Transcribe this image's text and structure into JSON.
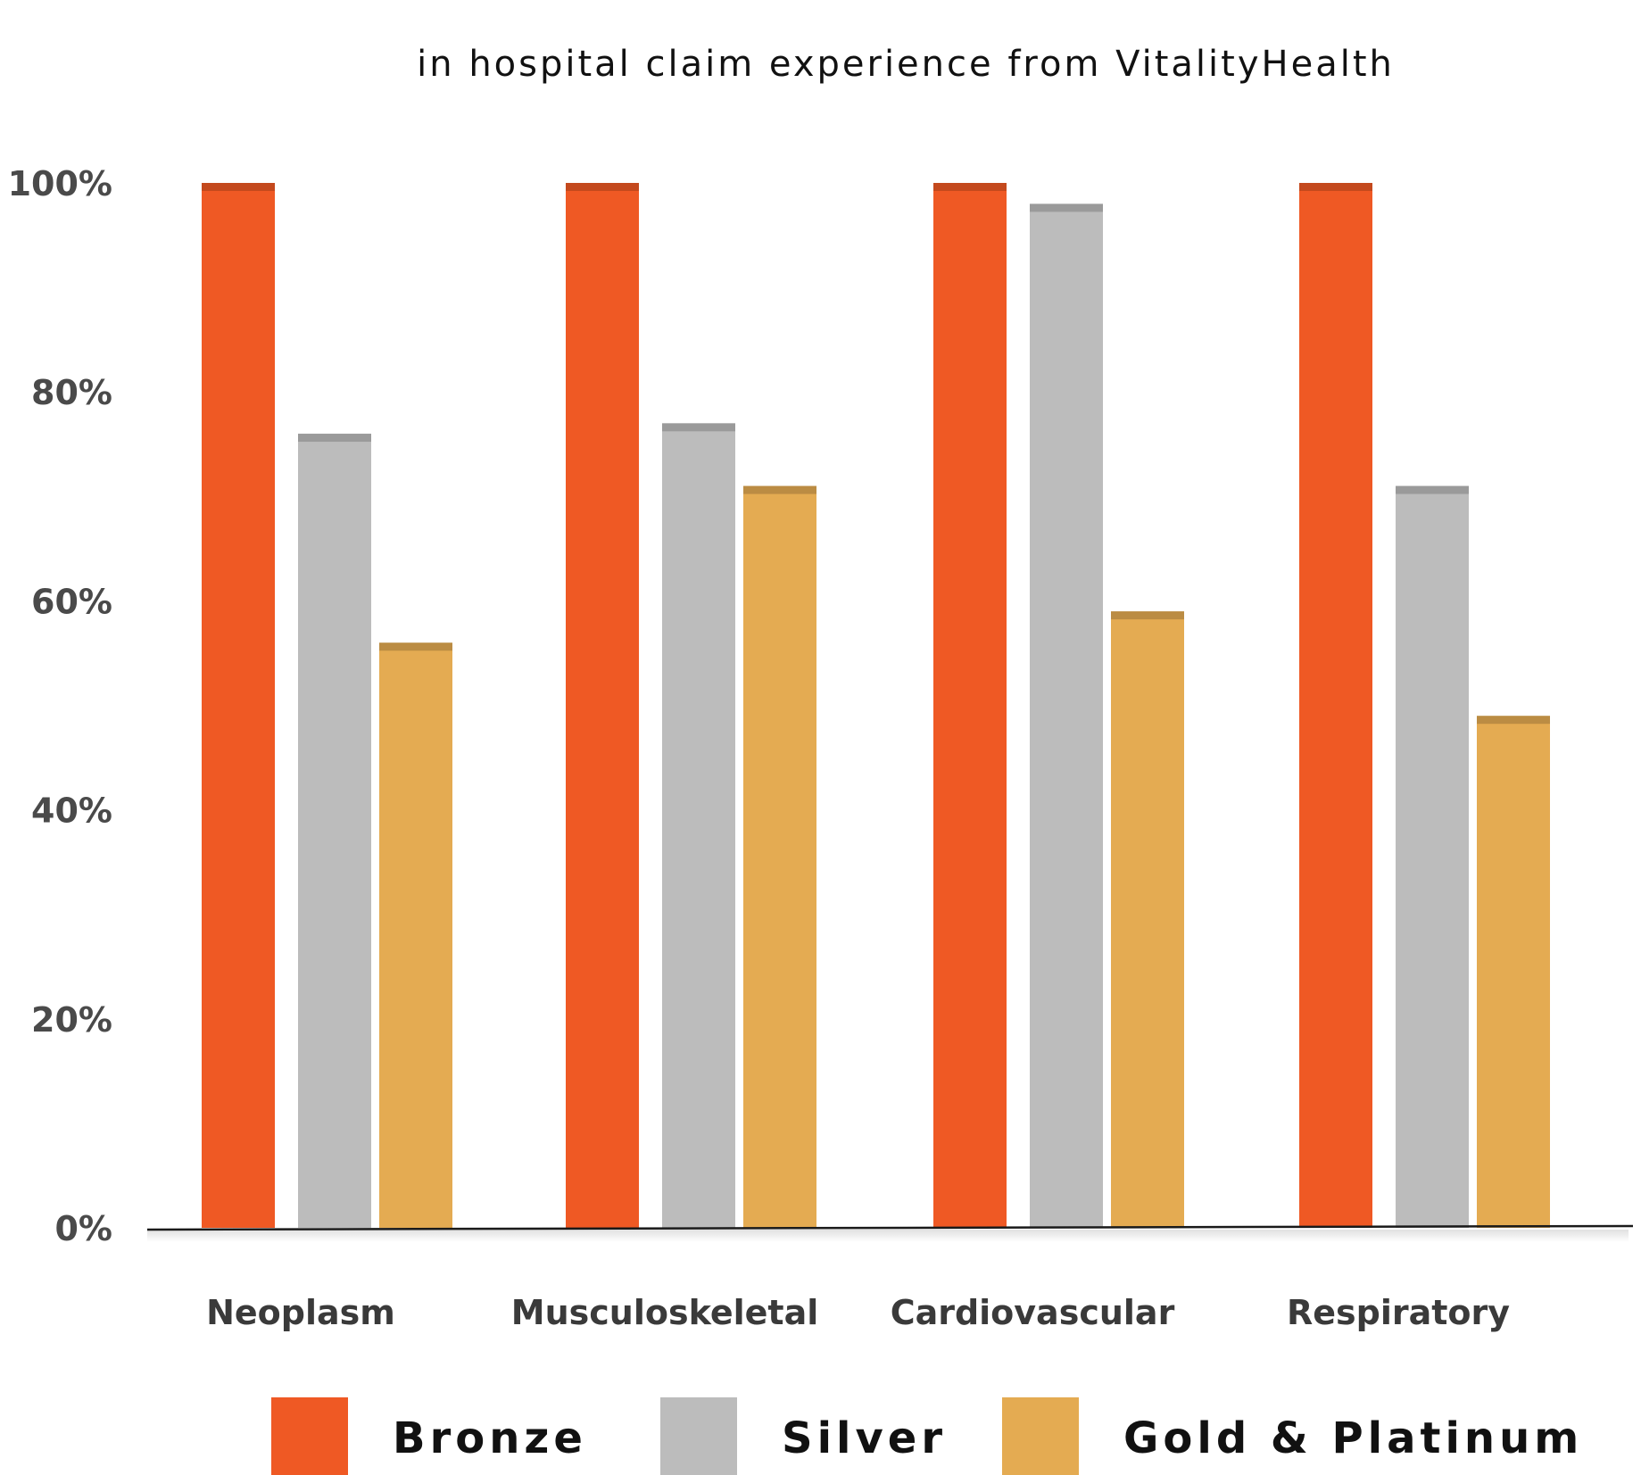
{
  "chart_data": {
    "type": "bar",
    "title": "in hospital claim experience from VitalityHealth",
    "categories": [
      "Neoplasm",
      "Musculoskeletal",
      "Cardiovascular",
      "Respiratory"
    ],
    "series": [
      {
        "name": "Bronze",
        "color": "#ef5924",
        "values": [
          100,
          100,
          100,
          100
        ]
      },
      {
        "name": "Silver",
        "color": "#bcbcbc",
        "values": [
          76,
          77,
          98,
          71
        ]
      },
      {
        "name": "Gold & Platinum",
        "color": "#e4ab52",
        "values": [
          56,
          71,
          59,
          49
        ]
      }
    ],
    "ylim": [
      0,
      100
    ],
    "yticks": [
      0,
      20,
      40,
      60,
      80,
      100
    ],
    "ytick_labels": [
      "0%",
      "20%",
      "40%",
      "60%",
      "80%",
      "100%"
    ],
    "xlabel": "",
    "ylabel": "",
    "grid": false,
    "legend_position": "bottom"
  }
}
